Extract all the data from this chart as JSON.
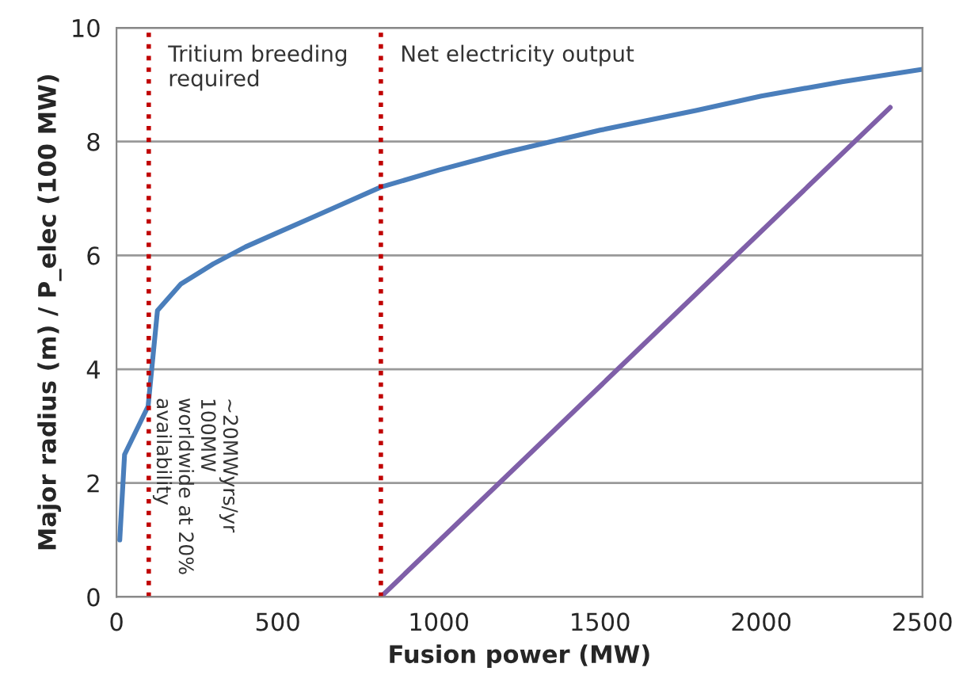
{
  "chart_data": {
    "type": "line",
    "xlabel": "Fusion power (MW)",
    "ylabel": "Major radius (m) / P_elec (100 MW)",
    "xlim": [
      0,
      2500
    ],
    "xticks": [
      0,
      500,
      1000,
      1500,
      2000,
      2500
    ],
    "ylim": [
      0,
      10
    ],
    "yticks": [
      0,
      2,
      4,
      6,
      8,
      10
    ],
    "grid": "y",
    "line_style": "solid",
    "marker": "none",
    "series": [
      {
        "color": "#4a7ebb",
        "x": [
          10,
          25,
          98,
          127,
          200,
          300,
          400,
          500,
          600,
          700,
          820,
          1000,
          1200,
          1500,
          1800,
          2000,
          2250,
          2500
        ],
        "values": [
          1.0,
          2.5,
          3.35,
          5.03,
          5.5,
          5.85,
          6.15,
          6.4,
          6.65,
          6.9,
          7.2,
          7.5,
          7.8,
          8.2,
          8.55,
          8.8,
          9.05,
          9.27
        ]
      },
      {
        "color": "#7f5fa8",
        "x": [
          820,
          2400
        ],
        "values": [
          0,
          8.6
        ]
      }
    ],
    "ref_lines": [
      {
        "axis": "x",
        "value": 100,
        "label": "Tritium breeding\nrequired",
        "color": "#c00000",
        "line_style": "dotted"
      },
      {
        "axis": "x",
        "value": 820,
        "label": "Net electricity output",
        "color": "#c00000",
        "line_style": "dotted"
      }
    ],
    "annotations": [
      "~20MWyrs/yr\n100MW\nworldwide at 20%\navailability"
    ]
  }
}
